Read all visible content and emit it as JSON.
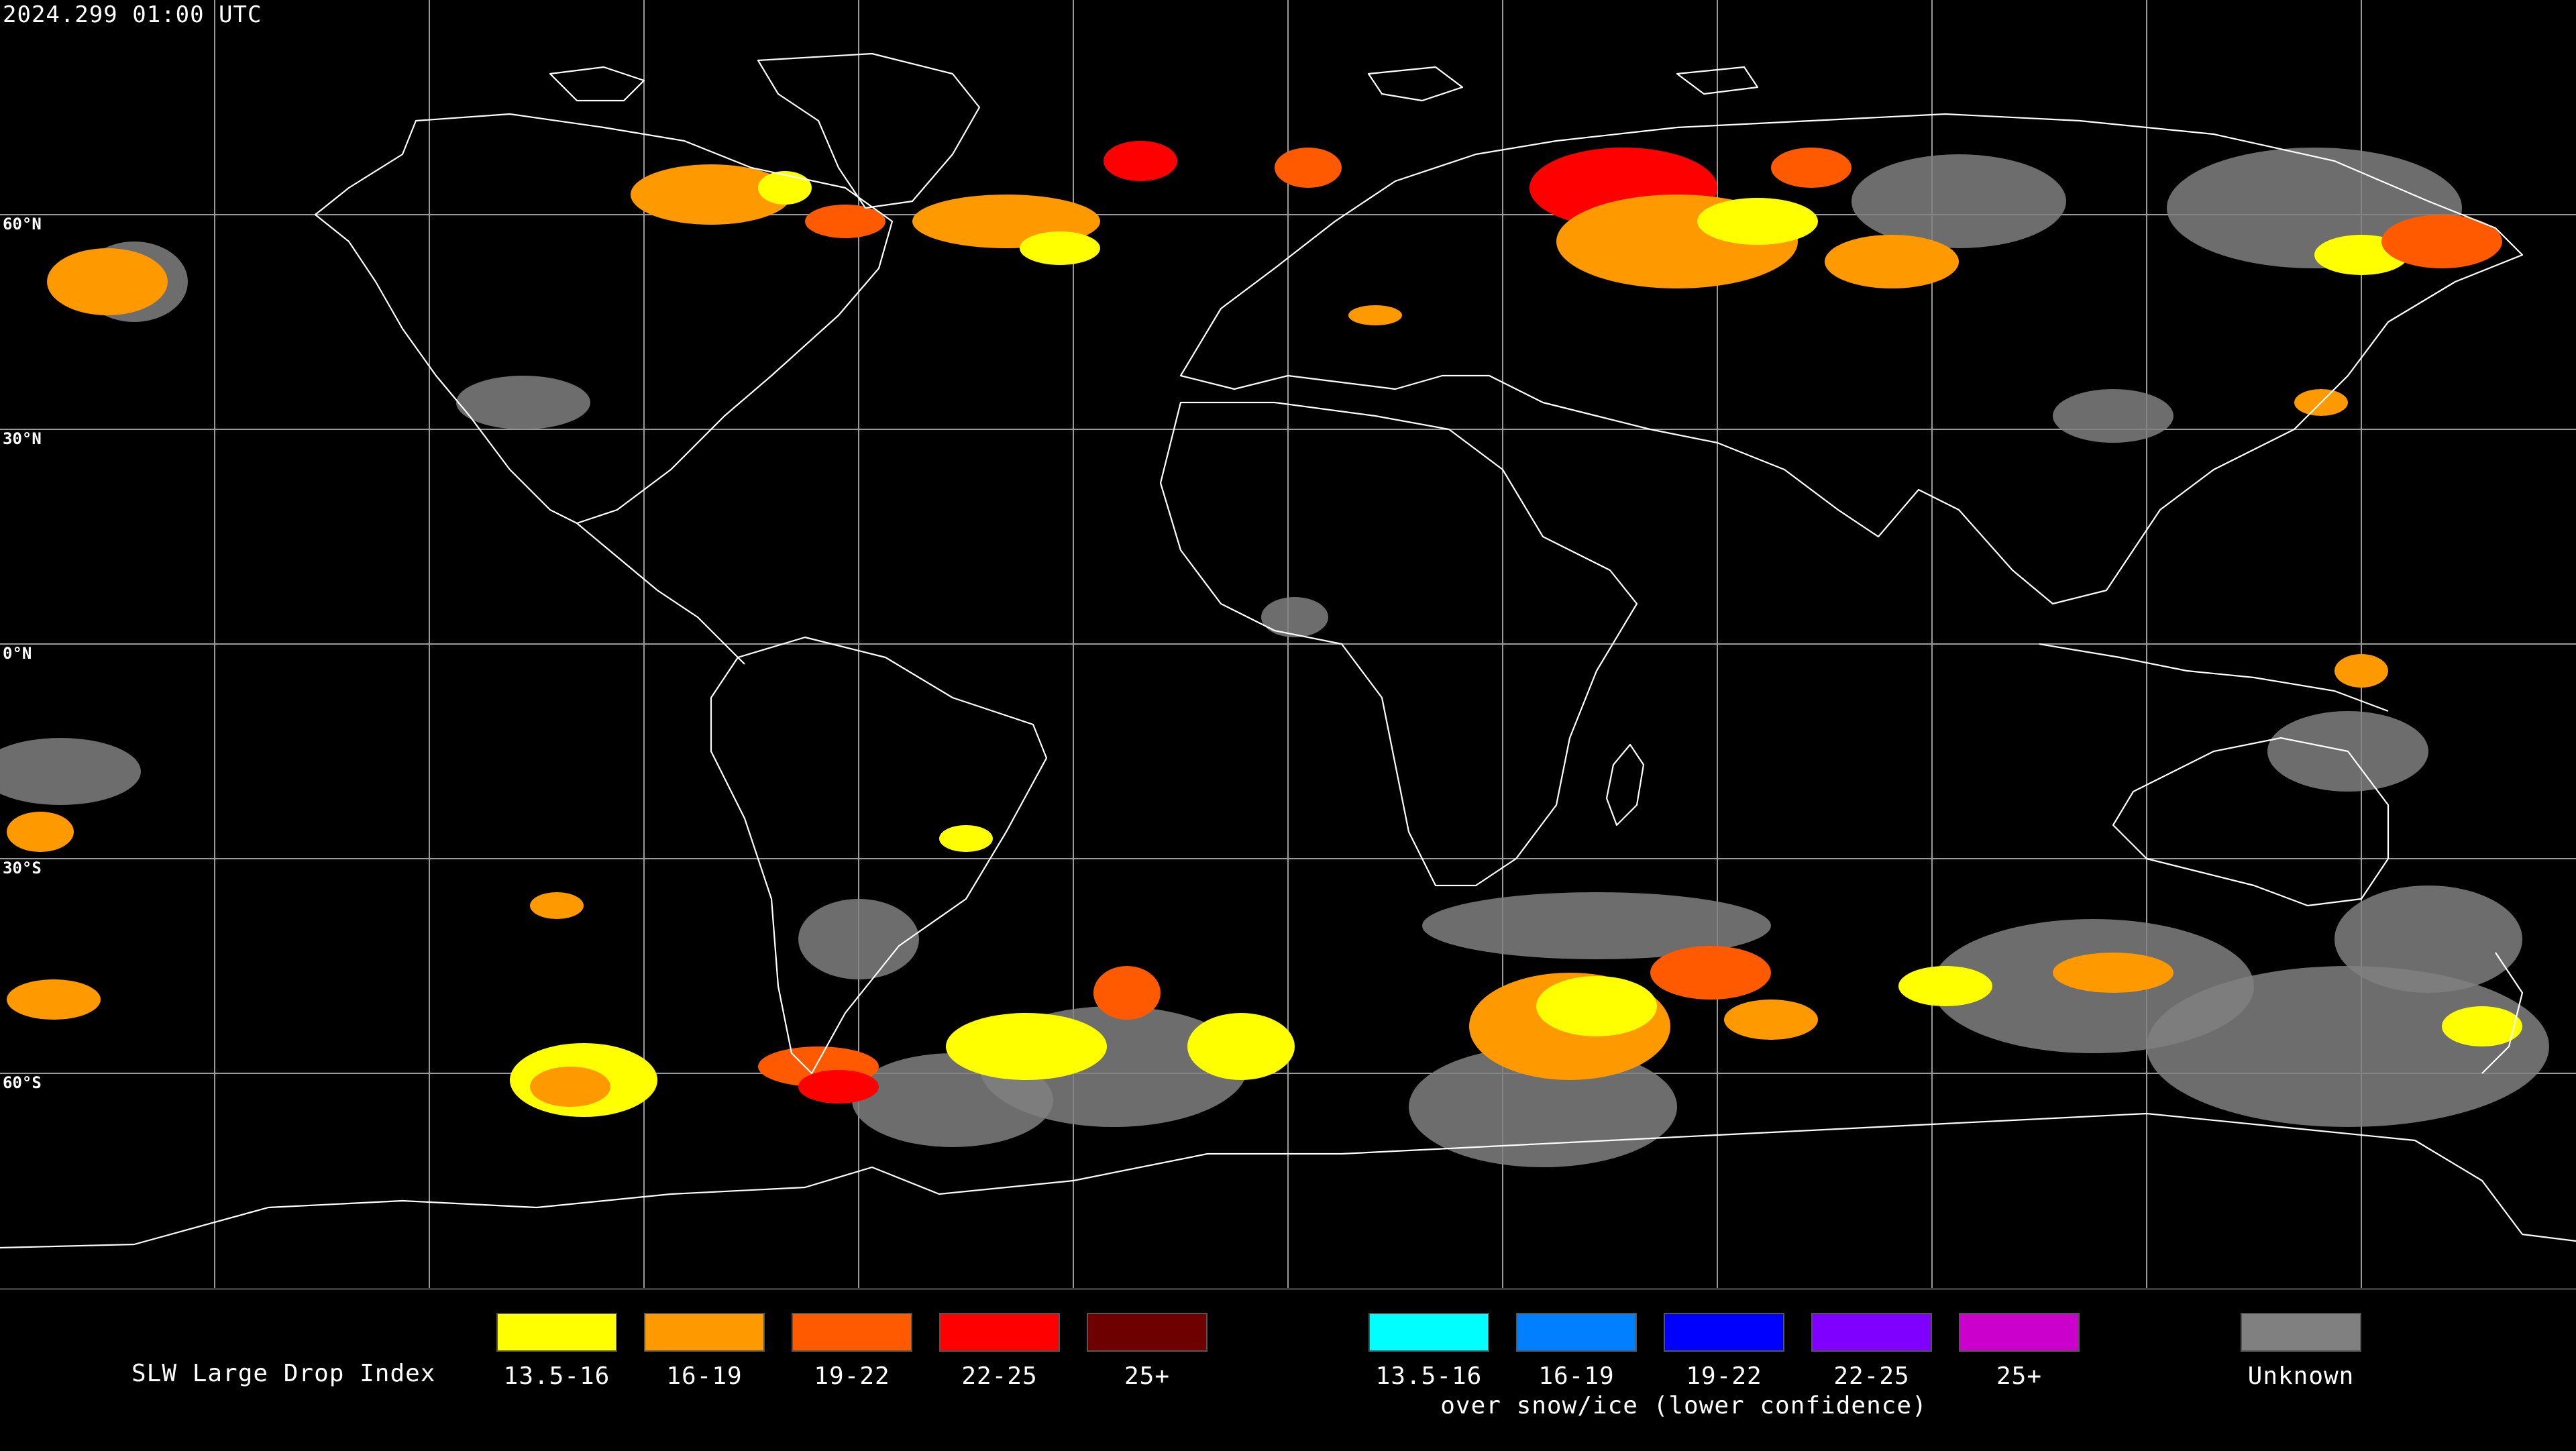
{
  "header": {
    "timestamp": "2024.299 01:00 UTC"
  },
  "map": {
    "latitude_labels": [
      "60°N",
      "30°N",
      "0°N",
      "30°S",
      "60°S"
    ],
    "colors": {
      "background": "#000000",
      "coastline": "#ffffff",
      "gridline": "#9a9a9a",
      "unknown": "#808080"
    }
  },
  "legend": {
    "title": "SLW Large Drop Index",
    "normal_items": [
      {
        "label": "13.5-16",
        "color": "#ffff00"
      },
      {
        "label": "16-19",
        "color": "#ff9900"
      },
      {
        "label": "19-22",
        "color": "#ff5a00"
      },
      {
        "label": "22-25",
        "color": "#ff0000"
      },
      {
        "label": "25+",
        "color": "#6e0000"
      }
    ],
    "snow_items": [
      {
        "label": "13.5-16",
        "color": "#00ffff"
      },
      {
        "label": "16-19",
        "color": "#0080ff"
      },
      {
        "label": "19-22",
        "color": "#0000ff"
      },
      {
        "label": "22-25",
        "color": "#8000ff"
      },
      {
        "label": "25+",
        "color": "#cc00cc"
      }
    ],
    "snow_caption": "over snow/ice (lower confidence)",
    "unknown_item": {
      "label": "Unknown",
      "color": "#808080"
    }
  }
}
